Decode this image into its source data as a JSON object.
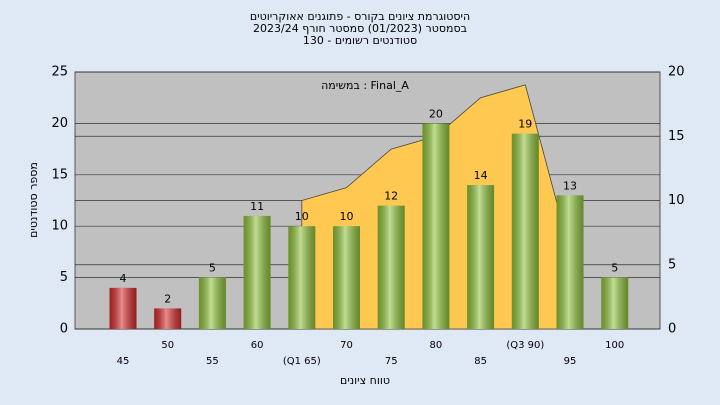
{
  "chart_data": {
    "type": "bar",
    "title": [
      "היסטוגרמת ציונים בקורס - פתוגנים אאוקריוטים",
      "בסמסטר  (01/2023)  סמסטר חורף 2023/24",
      "סטודנטים רשומים - 130"
    ],
    "annotation": "במשימה : Final_A",
    "x_label": "טווח ציונים",
    "y_label": "מספר סטודנטים",
    "categories": [
      "45",
      "50",
      "55",
      "60",
      "(Q1 65)",
      "70",
      "75",
      "80",
      "85",
      "(Q3 90)",
      "95",
      "100"
    ],
    "values": [
      4,
      2,
      5,
      11,
      10,
      10,
      12,
      20,
      14,
      19,
      13,
      5
    ],
    "colors": [
      "#d42a2a",
      "#d42a2a",
      "#8fc23a",
      "#8fc23a",
      "#8fc23a",
      "#8fc23a",
      "#8fc23a",
      "#8fc23a",
      "#8fc23a",
      "#8fc23a",
      "#8fc23a",
      "#8fc23a"
    ],
    "ylim": [
      0,
      25
    ],
    "yticks": [
      0,
      5,
      10,
      15,
      20,
      25
    ],
    "overlay": {
      "axis": "y2",
      "color": "#ffc850",
      "values": [
        null,
        null,
        null,
        null,
        10,
        11,
        14,
        15,
        18,
        19,
        6,
        null
      ]
    },
    "y2lim": [
      0,
      20
    ],
    "y2ticks": [
      0,
      5,
      10,
      15,
      20
    ],
    "grid": true
  }
}
